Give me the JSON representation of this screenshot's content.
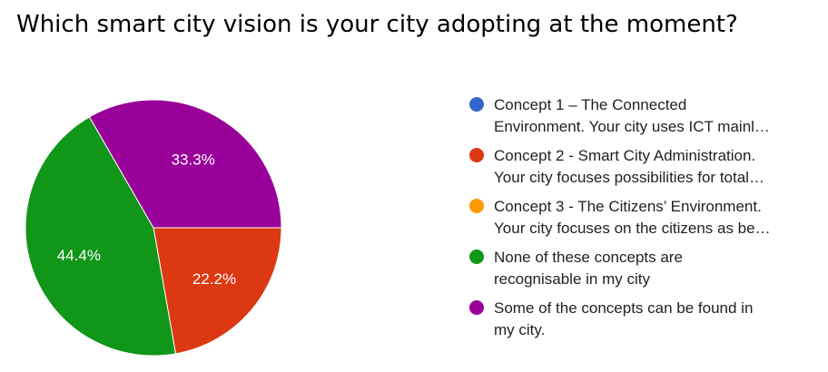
{
  "title": "Which smart city vision is your city adopting at the moment?",
  "chart_data": {
    "type": "pie",
    "title": "Which smart city vision is your city adopting at the moment?",
    "legend_position": "right",
    "slices": [
      {
        "label_lines": [
          "Concept 1 – The Connected",
          "Environment. Your city uses ICT mainl…"
        ],
        "value": 0,
        "color": "#3366cc"
      },
      {
        "label_lines": [
          "Concept 2 - Smart City Administration.",
          "Your city focuses possibilities for total…"
        ],
        "value": 22.2,
        "percent_label": "22.2%",
        "color": "#dc3912"
      },
      {
        "label_lines": [
          "Concept 3 - The Citizens’ Environment.",
          "Your city focuses on the citizens as be…"
        ],
        "value": 0,
        "color": "#ff9900"
      },
      {
        "label_lines": [
          "None of these concepts are",
          "recognisable in my city"
        ],
        "value": 44.4,
        "percent_label": "44.4%",
        "color": "#109618"
      },
      {
        "label_lines": [
          "Some of the concepts can be found in",
          "my city."
        ],
        "value": 33.3,
        "percent_label": "33.3%",
        "color": "#990099"
      }
    ]
  }
}
